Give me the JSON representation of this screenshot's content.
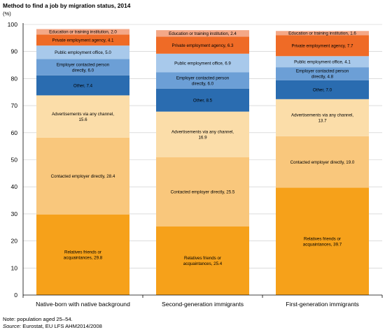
{
  "title": "Method to find a job by migration status, 2014",
  "unit": "(%)",
  "note": "Note: population aged 25–54.",
  "source_label": "Source:",
  "source_text": "Eurostat, EU LFS AHM2014/2008",
  "colors": {
    "Relatives friends or acquaintances": "#f6a11a",
    "Contacted employer directly": "#f9c77c",
    "Advertisements via any channel": "#fbdda9",
    "Other": "#2a6cb0",
    "Employer contacted person directly": "#6c9fd6",
    "Public employment office": "#a8c9eb",
    "Private employment agency": "#ef6b26",
    "Education or training institution": "#f4a887"
  },
  "chart_data": {
    "type": "bar",
    "stacked": true,
    "title": "Method to find a job by migration status, 2014",
    "ylabel": "(%)",
    "ylim": [
      0,
      100
    ],
    "yticks": [
      0,
      10,
      20,
      30,
      40,
      50,
      60,
      70,
      80,
      90,
      100
    ],
    "categories": [
      "Native-born with native background",
      "Second-generation immigrants",
      "First-generation immigrants"
    ],
    "series": [
      {
        "name": "Relatives friends or acquaintances",
        "values": [
          29.8,
          25.4,
          39.7
        ],
        "labels": [
          "Relatives friends or acquaintances, 29.8",
          "Relatives friends or acquaintances, 25.4",
          "Relatives friends or acquaintances, 39.7"
        ]
      },
      {
        "name": "Contacted employer directly",
        "values": [
          28.4,
          25.5,
          19.0
        ],
        "labels": [
          "Contacted employer directly, 28.4",
          "Contacted employer directly, 25.5",
          "Contacted employer directly, 19.0"
        ]
      },
      {
        "name": "Advertisements via any channel",
        "values": [
          15.6,
          16.9,
          13.7
        ],
        "labels": [
          "Advertisements via any channel, 15.6",
          "Advertisements via any channel, 16.9",
          "Advertisements via any channel, 13.7"
        ]
      },
      {
        "name": "Other",
        "values": [
          7.4,
          8.5,
          7.0
        ],
        "labels": [
          "Other, 7.4",
          "Other, 8.5",
          "Other, 7.0"
        ]
      },
      {
        "name": "Employer contacted person directly",
        "values": [
          6.0,
          6.0,
          4.8
        ],
        "labels": [
          "Employer contacted person directly, 6.0",
          "Employer contacted person directly, 6.0",
          "Employer contacted person directly, 4.8"
        ]
      },
      {
        "name": "Public employment office",
        "values": [
          5.0,
          6.9,
          4.1
        ],
        "labels": [
          "Public employment office, 5.0",
          "Public employment office, 6.9",
          "Public employment office, 4.1"
        ]
      },
      {
        "name": "Private employment agency",
        "values": [
          4.1,
          6.3,
          7.7
        ],
        "labels": [
          "Private employment agency, 4.1",
          "Private employment agency, 6.3",
          "Private employment agency, 7.7"
        ]
      },
      {
        "name": "Education or training institution",
        "values": [
          2.0,
          2.4,
          1.6
        ],
        "labels": [
          "Education or training institution, 2.0",
          "Education or training institution, 2.4",
          "Education or training institution, 1.6"
        ]
      }
    ]
  }
}
